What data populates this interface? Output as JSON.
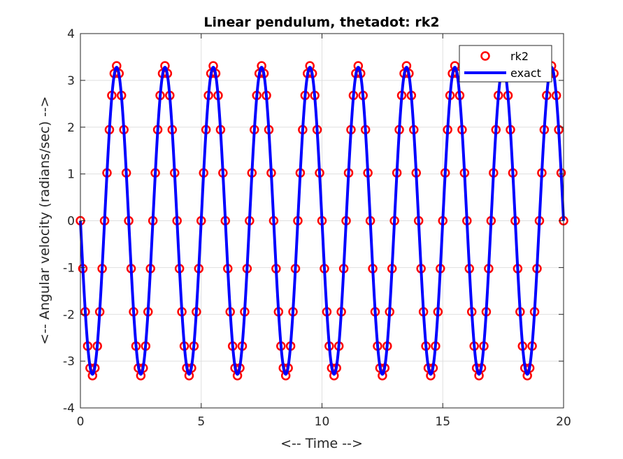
{
  "chart_data": {
    "type": "line",
    "title": "Linear pendulum, thetadot: rk2",
    "xlabel": "<-- Time -->",
    "ylabel": "<-- Angular velocity (radians/sec) -->",
    "xlim": [
      0,
      20
    ],
    "ylim": [
      -4,
      4
    ],
    "xticks": [
      0,
      5,
      10,
      15,
      20
    ],
    "yticks": [
      -4,
      -3,
      -2,
      -1,
      0,
      1,
      2,
      3,
      4
    ],
    "grid": true,
    "legend_position": "top-right",
    "series": [
      {
        "name": "rk2",
        "style": "markers",
        "marker": "circle",
        "color": "#ff0000",
        "t_start": 0,
        "t_end": 20,
        "t_step": 0.1,
        "amplitude": 3.31,
        "angular_frequency": 3.1416,
        "function": "-amplitude*sin(angular_frequency*t)"
      },
      {
        "name": "exact",
        "style": "line",
        "color": "#0000ff",
        "t_start": 0,
        "t_end": 20,
        "amplitude": 3.28,
        "angular_frequency": 3.1416,
        "function": "-amplitude*sin(angular_frequency*t)"
      }
    ]
  }
}
